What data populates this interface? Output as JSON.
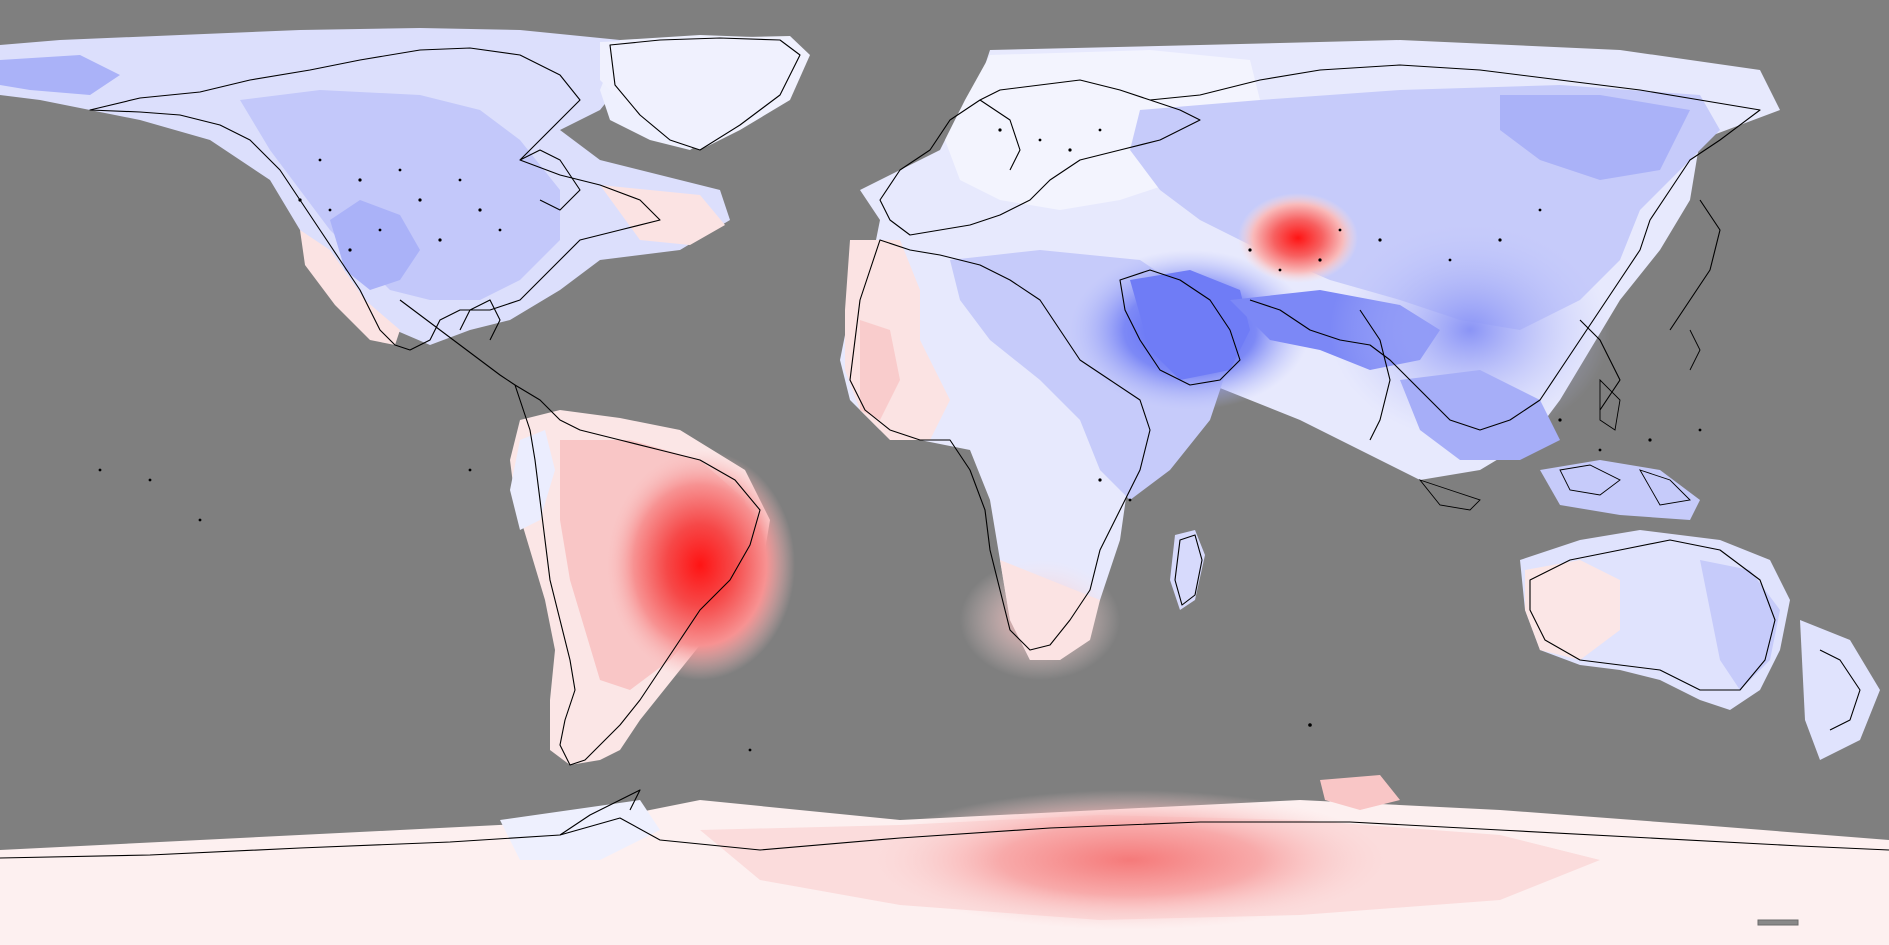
{
  "map": {
    "projection": "equirectangular",
    "ocean_color": "#7f7f7f",
    "coastline_color": "#000000",
    "color_scale": {
      "strong_negative": "#4f5ff5",
      "mid_negative": "#9fa8f7",
      "weak_negative": "#e4e7fd",
      "neutral": "#fdf3f3",
      "weak_positive": "#f9c5c5",
      "mid_positive": "#f79292",
      "strong_positive": "#ff1414"
    },
    "legend": {
      "visible": false
    }
  }
}
